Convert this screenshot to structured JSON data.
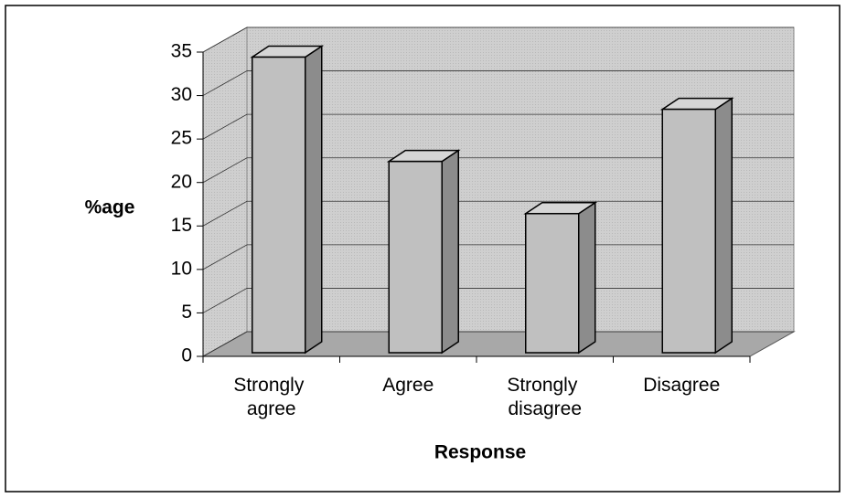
{
  "chart_data": {
    "type": "bar3d",
    "categories": [
      "Strongly agree",
      "Agree",
      "Strongly disagree",
      "Disagree"
    ],
    "values": [
      34,
      22,
      16,
      28
    ],
    "color": "#c0c0c0",
    "xlabel": "Response",
    "ylabel": "%age",
    "ylim": [
      0,
      35
    ],
    "yticks": [
      0,
      5,
      10,
      15,
      20,
      25,
      30,
      35
    ],
    "grid": true
  }
}
